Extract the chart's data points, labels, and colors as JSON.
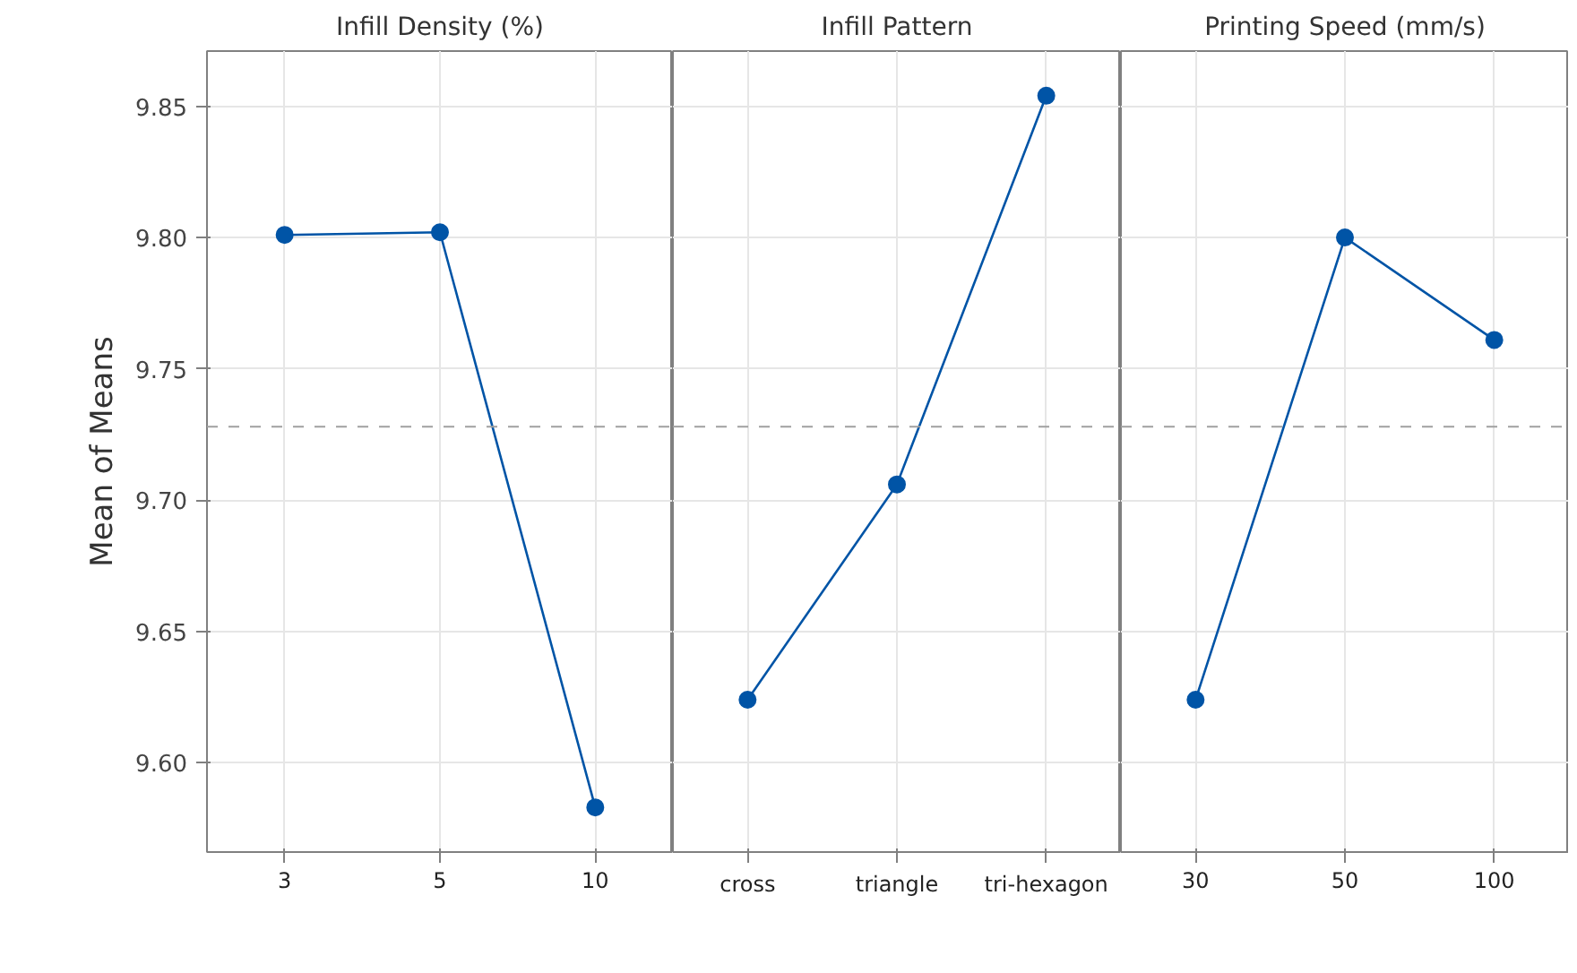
{
  "chart_data": [
    {
      "type": "line",
      "title": "Infill Density (%)",
      "ylabel": "Mean of Means",
      "categories": [
        "3",
        "5",
        "10"
      ],
      "series": [
        {
          "color": "#0054a6",
          "values": [
            9.801,
            9.802,
            9.583
          ]
        }
      ],
      "ylim": [
        9.566,
        9.871
      ],
      "yticks": [
        {
          "value": 9.6,
          "label": "9.60"
        },
        9.65,
        {
          "value": 9.7,
          "label": "9.70"
        },
        9.75,
        {
          "value": 9.8,
          "label": "9.80"
        },
        9.85
      ],
      "ref_lines": [
        {
          "axis": "y",
          "value": 9.728,
          "color": "#a0a0a0",
          "line_style": "dashed"
        }
      ],
      "grid": true,
      "marker": "circle",
      "line_style": "solid"
    },
    {
      "type": "line",
      "title": "Infill Pattern",
      "categories": [
        "cross",
        "triangle",
        "tri-hexagon"
      ],
      "series": [
        {
          "color": "#0054a6",
          "values": [
            9.624,
            9.706,
            9.854
          ]
        }
      ],
      "ylim": [
        9.566,
        9.871
      ],
      "yticks": [
        9.6,
        9.65,
        9.7,
        9.75,
        9.8,
        9.85
      ],
      "tick_labels": "x",
      "ref_lines": [
        {
          "axis": "y",
          "value": 9.728,
          "color": "#a0a0a0",
          "line_style": "dashed"
        }
      ],
      "grid": true,
      "marker": "circle",
      "line_style": "solid"
    },
    {
      "type": "line",
      "title": "Printing Speed (mm/s)",
      "categories": [
        "30",
        "50",
        "100"
      ],
      "series": [
        {
          "color": "#0054a6",
          "values": [
            9.624,
            9.8,
            9.761
          ]
        }
      ],
      "ylim": [
        9.566,
        9.871
      ],
      "yticks": [
        9.6,
        9.65,
        9.7,
        9.75,
        9.8,
        9.85
      ],
      "tick_labels": "x",
      "ref_lines": [
        {
          "axis": "y",
          "value": 9.728,
          "color": "#a0a0a0",
          "line_style": "dashed"
        }
      ],
      "grid": true,
      "marker": "circle",
      "line_style": "solid"
    }
  ]
}
